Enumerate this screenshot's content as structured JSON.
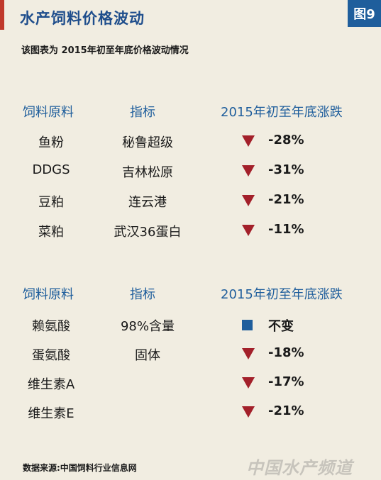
{
  "title": "水产饲料价格波动",
  "figure_label": "图9",
  "subtitle": "该图表为 2015年初至年底价格波动情况",
  "headers": {
    "material": "饲料原料",
    "indicator": "指标",
    "change": "2015年初至年底涨跌"
  },
  "table1": [
    {
      "material": "鱼粉",
      "indicator": "秘鲁超级",
      "direction": "down",
      "change": "-28%"
    },
    {
      "material": "DDGS",
      "indicator": "吉林松原",
      "direction": "down",
      "change": "-31%"
    },
    {
      "material": "豆粕",
      "indicator": "连云港",
      "direction": "down",
      "change": "-21%"
    },
    {
      "material": "菜粕",
      "indicator": "武汉36蛋白",
      "direction": "down",
      "change": "-11%"
    }
  ],
  "table2": [
    {
      "material": "赖氨酸",
      "indicator": "98%含量",
      "direction": "flat",
      "change": "不变"
    },
    {
      "material": "蛋氨酸",
      "indicator": "固体",
      "direction": "down",
      "change": "-18%"
    },
    {
      "material": "维生素A",
      "indicator": "",
      "direction": "down",
      "change": "-17%"
    },
    {
      "material": "维生素E",
      "indicator": "",
      "direction": "down",
      "change": "-21%"
    }
  ],
  "source": "数据来源:中国饲料行业信息网",
  "watermark": "中国水产频道",
  "colors": {
    "accent_blue": "#1f5e9c",
    "down_red": "#a3202a",
    "background": "#f1ede1"
  }
}
